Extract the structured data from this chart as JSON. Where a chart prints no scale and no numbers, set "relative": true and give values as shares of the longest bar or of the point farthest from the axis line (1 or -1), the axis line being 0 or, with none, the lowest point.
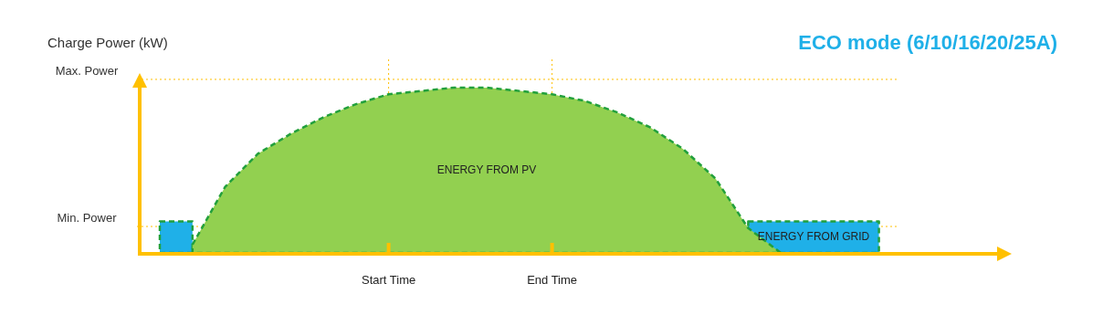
{
  "chart_data": {
    "type": "area",
    "relative": true,
    "title": "ECO mode (6/10/16/20/25A)",
    "ylabel": "Charge Power (kW)",
    "categories": [
      null,
      null,
      null,
      null,
      null,
      null,
      null,
      "Start Time",
      null,
      null,
      null,
      null,
      "End Time",
      null,
      null,
      null,
      null,
      null,
      null,
      null,
      null,
      null,
      null
    ],
    "line_style": "dashed",
    "grid": "x",
    "series": [
      {
        "name": "ENERGY FROM GRID",
        "color": "#1fb0e8",
        "values": [
          0.19,
          0.19,
          null,
          null,
          null,
          null,
          null,
          null,
          null,
          null,
          null,
          null,
          null,
          null,
          null,
          null,
          null,
          null,
          0.19,
          0.19,
          0.19,
          0.19,
          0.19
        ]
      },
      {
        "name": "ENERGY FROM PV",
        "color": "#92d050",
        "values": [
          null,
          0.05,
          0.4,
          0.6,
          0.72,
          0.82,
          0.9,
          0.96,
          0.98,
          1,
          1,
          0.98,
          0.96,
          0.92,
          0.85,
          0.76,
          0.63,
          0.45,
          0.15,
          0,
          null,
          null,
          null
        ]
      }
    ],
    "ref_lines": [
      {
        "axis": "y",
        "value": 1.05,
        "label": "Max. Power",
        "color": "#ffc000",
        "line_style": "dotted"
      },
      {
        "axis": "y",
        "value": 0.16,
        "label": "Min. Power",
        "color": "#ffc000",
        "line_style": "dotted"
      }
    ]
  }
}
